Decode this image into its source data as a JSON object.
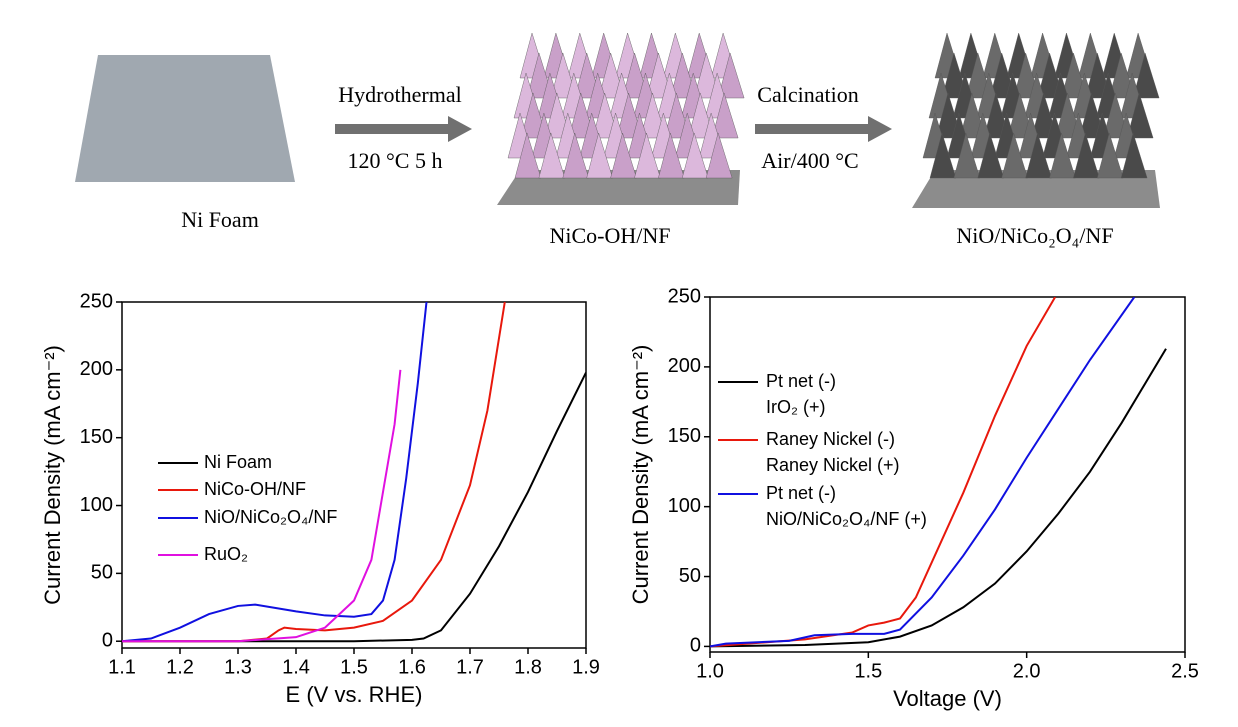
{
  "schematic": {
    "substrate": "Ni Foam",
    "step1": "Hydrothermal",
    "step1_condition": "120 °C 5 h",
    "intermediate": "NiCo-OH/NF",
    "step2": "Calcination",
    "step2_condition": "Air/400 °C",
    "product": "NiO/NiCo₂O₄/NF"
  },
  "chart_data": [
    {
      "type": "line",
      "xlabel": "E (V vs. RHE)",
      "ylabel": "Current Density (mA cm⁻²)",
      "xlim": [
        1.1,
        1.9
      ],
      "xticks": [
        1.1,
        1.2,
        1.3,
        1.4,
        1.5,
        1.6,
        1.7,
        1.8,
        1.9
      ],
      "ylim": [
        -5,
        250
      ],
      "yticks": [
        0,
        50,
        100,
        150,
        200,
        250
      ],
      "series": [
        {
          "name": "Ni Foam",
          "color": "#000000",
          "x": [
            1.1,
            1.3,
            1.5,
            1.6,
            1.62,
            1.65,
            1.7,
            1.75,
            1.8,
            1.85,
            1.9
          ],
          "values": [
            0,
            0,
            0,
            1,
            2,
            8,
            35,
            70,
            110,
            155,
            198
          ]
        },
        {
          "name": "NiCo-OH/NF",
          "color": "#e8180c",
          "x": [
            1.1,
            1.3,
            1.35,
            1.37,
            1.38,
            1.4,
            1.45,
            1.5,
            1.55,
            1.6,
            1.65,
            1.7,
            1.73,
            1.76
          ],
          "values": [
            0,
            0,
            2,
            8,
            10,
            9,
            8,
            10,
            15,
            30,
            60,
            115,
            170,
            250
          ]
        },
        {
          "name": "NiO/NiCo₂O₄/NF",
          "color": "#1010e0",
          "x": [
            1.1,
            1.15,
            1.2,
            1.25,
            1.3,
            1.33,
            1.4,
            1.45,
            1.5,
            1.53,
            1.55,
            1.57,
            1.59,
            1.61,
            1.625
          ],
          "values": [
            0,
            2,
            10,
            20,
            26,
            27,
            22,
            19,
            18,
            20,
            30,
            60,
            120,
            190,
            250
          ]
        },
        {
          "name": "RuO₂",
          "color": "#e010e0",
          "x": [
            1.1,
            1.3,
            1.4,
            1.45,
            1.5,
            1.53,
            1.55,
            1.57,
            1.58
          ],
          "values": [
            0,
            0,
            3,
            10,
            30,
            60,
            110,
            160,
            200
          ]
        }
      ]
    },
    {
      "type": "line",
      "xlabel": "Voltage (V)",
      "ylabel": "Current Density (mA cm⁻²)",
      "xlim": [
        1.0,
        2.5
      ],
      "xticks": [
        {
          "value": 1.0,
          "label": "1.0"
        },
        1.5,
        {
          "value": 2.0,
          "label": "2.0"
        },
        2.5
      ],
      "ylim": [
        -4,
        250
      ],
      "yticks": [
        0,
        50,
        100,
        150,
        200,
        250
      ],
      "series": [
        {
          "name": [
            "Pt net (-)",
            "IrO₂ (+)"
          ],
          "color": "#000000",
          "x": [
            1.0,
            1.3,
            1.5,
            1.6,
            1.7,
            1.8,
            1.9,
            2.0,
            2.1,
            2.2,
            2.3,
            2.44
          ],
          "values": [
            0,
            1,
            3,
            7,
            15,
            28,
            45,
            68,
            95,
            125,
            160,
            213
          ]
        },
        {
          "name": [
            "Raney Nickel (-)",
            "Raney Nickel (+)"
          ],
          "color": "#e8180c",
          "x": [
            1.0,
            1.3,
            1.45,
            1.5,
            1.55,
            1.6,
            1.65,
            1.7,
            1.8,
            1.9,
            2.0,
            2.09
          ],
          "values": [
            0,
            5,
            10,
            15,
            17,
            20,
            35,
            60,
            110,
            165,
            215,
            250
          ]
        },
        {
          "name": [
            "Pt net (-)",
            "NiO/NiCo₂O₄/NF (+)"
          ],
          "color": "#1010e0",
          "x": [
            1.0,
            1.05,
            1.25,
            1.33,
            1.45,
            1.55,
            1.6,
            1.7,
            1.8,
            1.9,
            2.0,
            2.1,
            2.2,
            2.34
          ],
          "values": [
            0,
            2,
            4,
            8,
            9,
            9,
            12,
            35,
            65,
            98,
            135,
            170,
            205,
            250
          ]
        }
      ]
    }
  ]
}
